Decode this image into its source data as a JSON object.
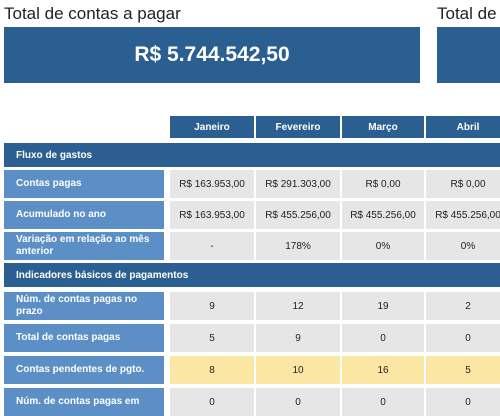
{
  "kpi": {
    "total_title": "Total de contas a pagar",
    "total_value": "R$ 5.744.542,50",
    "second_title": "Total de"
  },
  "months": [
    "Janeiro",
    "Fevereiro",
    "Março",
    "Abril"
  ],
  "sections": {
    "fluxo": "Fluxo de gastos",
    "indicadores": "Indicadores básicos de pagamentos"
  },
  "rows": {
    "contas_pagas": {
      "label": "Contas pagas",
      "values": [
        "R$ 163.953,00",
        "R$ 291.303,00",
        "R$ 0,00",
        "R$ 0,00"
      ]
    },
    "acumulado": {
      "label": "Acumulado no ano",
      "values": [
        "R$ 163.953,00",
        "R$ 455.256,00",
        "R$ 455.256,00",
        "R$ 455.256,00"
      ]
    },
    "variacao": {
      "label": "Variação em relação ao mês anterior",
      "values": [
        "-",
        "178%",
        "0%",
        "0%"
      ]
    },
    "num_prazo": {
      "label": "Núm. de contas pagas no prazo",
      "values": [
        "9",
        "12",
        "19",
        "2"
      ]
    },
    "total_pagas": {
      "label": "Total de contas pagas",
      "values": [
        "5",
        "9",
        "0",
        "0"
      ]
    },
    "pendentes": {
      "label": "Contas pendentes de pgto.",
      "values": [
        "8",
        "10",
        "16",
        "5"
      ]
    },
    "partial": {
      "label": "Núm. de contas pagas em",
      "values": [
        "0",
        "0",
        "0",
        "0"
      ]
    }
  },
  "colors": {
    "header_blue": "#2c5f91",
    "label_blue": "#5b8fc5",
    "cell_gray": "#e6e6e6",
    "highlight_yellow": "#fbe7a3"
  }
}
